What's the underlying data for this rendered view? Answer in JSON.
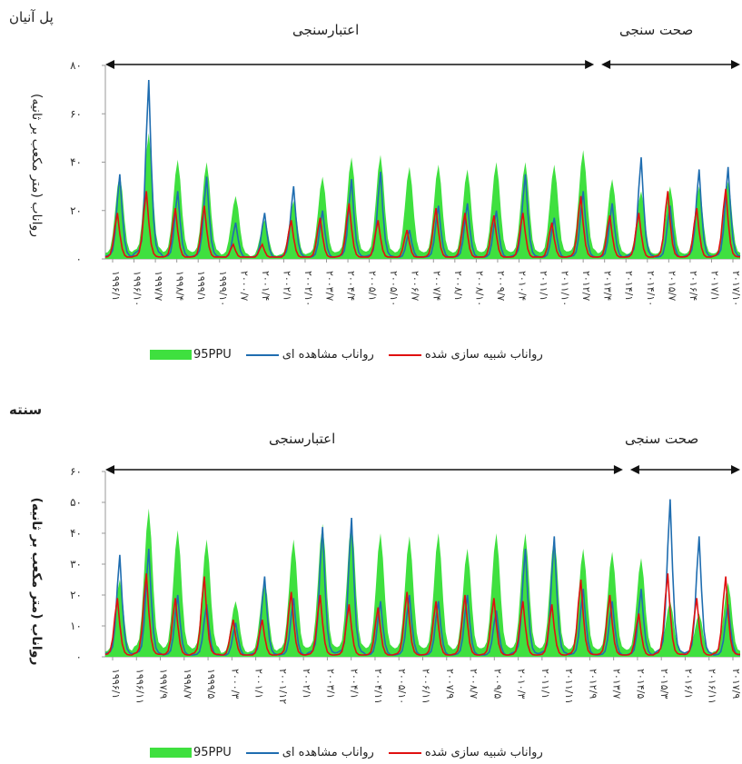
{
  "chart_data": [
    {
      "type": "area",
      "station": "پل آنیان",
      "ylabel": "رواناب (متر مکعب بر ثانیه)",
      "ylim": [
        0,
        80
      ],
      "yticks": [
        "۰",
        "۲۰",
        "۴۰",
        "۶۰",
        "۸۰"
      ],
      "periods": {
        "calibration": "اعتبارسنجی",
        "validation": "صحت سنجی"
      },
      "xticks": [
        "۱۹۹۶/۱",
        "۱۹۹۶/۱۰",
        "۱۹۹۷/۷",
        "۱۹۹۸/۴",
        "۱۹۹۹/۱",
        "۱۹۹۹/۱۰",
        "۲۰۰۰/۷",
        "۲۰۰۱/۴",
        "۲۰۰۲/۱",
        "۲۰۰۲/۱۰",
        "۲۰۰۳/۷",
        "۲۰۰۴/۴",
        "۲۰۰۵/۱",
        "۲۰۰۵/۱۰",
        "۲۰۰۶/۷",
        "۲۰۰۷/۴",
        "۲۰۰۸/۱",
        "۲۰۰۸/۱۰",
        "۲۰۰۹/۷",
        "۲۰۱۰/۴",
        "۲۰۱۱/۱",
        "۲۰۱۱/۱۰",
        "۲۰۱۲/۷",
        "۲۰۱۳/۴",
        "۲۰۱۴/۱",
        "۲۰۱۴/۱۰",
        "۲۰۱۵/۷",
        "۲۰۱۶/۴",
        "۲۰۱۷/۱",
        "۲۰۱۷/۱۰"
      ],
      "years": [
        "1996",
        "1997",
        "1998",
        "1999",
        "2000",
        "2001",
        "2002",
        "2003",
        "2004",
        "2005",
        "2006",
        "2007",
        "2008",
        "2009",
        "2010",
        "2011",
        "2012",
        "2013",
        "2014",
        "2015",
        "2016",
        "2017"
      ],
      "calibration_end_year": "2013",
      "series": [
        {
          "name": "95PPU",
          "kind": "band",
          "color": "#3fe03f",
          "values": [
            35,
            52,
            41,
            40,
            26,
            16,
            24,
            34,
            42,
            43,
            38,
            39,
            37,
            40,
            40,
            39,
            45,
            33,
            28,
            30,
            30,
            32
          ]
        },
        {
          "name": "رواناب مشاهده ای",
          "kind": "line",
          "color": "#1f6db0",
          "values": [
            35,
            74,
            28,
            34,
            15,
            19,
            30,
            20,
            33,
            36,
            12,
            22,
            23,
            20,
            35,
            17,
            28,
            23,
            42,
            22,
            37,
            38
          ]
        },
        {
          "name": "رواناب شبیه سازی شده",
          "kind": "line",
          "color": "#e01010",
          "values": [
            19,
            28,
            21,
            22,
            6,
            6,
            16,
            17,
            23,
            16,
            12,
            21,
            19,
            18,
            19,
            15,
            26,
            18,
            19,
            28,
            21,
            29
          ]
        }
      ],
      "legend": [
        "95PPU",
        "رواناب مشاهده ای",
        "رواناب شبیه سازی شده"
      ]
    },
    {
      "type": "area",
      "station": "سنته",
      "ylabel": "رواناب (متر مکعب بر ثانیه)",
      "ylim": [
        0,
        60
      ],
      "yticks": [
        "۰",
        "۱۰",
        "۲۰",
        "۳۰",
        "۴۰",
        "۵۰",
        "۶۰"
      ],
      "periods": {
        "calibration": "اعتبارسنجی",
        "validation": "صحت سنجی"
      },
      "xticks": [
        "۱۹۹۶/۱",
        "۱۹۹۶/۱۱",
        "۱۹۹۷/۹",
        "۱۹۹۸/۷",
        "۱۹۹۹/۵",
        "۲۰۰۰/۳",
        "۲۰۰۱/۱",
        "۲۰۰۱/۱۲",
        "۲۰۰۲/۱",
        "۲۰۰۳/۱",
        "۲۰۰۴/۱",
        "۲۰۰۴/۱۱",
        "۲۰۰۵/۱۰",
        "۲۰۰۶/۱۱",
        "۲۰۰۷/۹",
        "۲۰۰۸/۷",
        "۲۰۰۹/۵",
        "۲۰۱۰/۳",
        "۲۰۱۱/۱",
        "۲۰۱۱/۱۱",
        "۲۰۱۲/۹",
        "۲۰۱۳/۷",
        "۲۰۱۴/۵",
        "۲۰۱۵/۳",
        "۲۰۱۶/۱",
        "۲۰۱۶/۱۱",
        "۲۰۱۷/۹"
      ],
      "years": [
        "1996",
        "1997",
        "1998",
        "1999",
        "2000",
        "2001",
        "2002",
        "2003",
        "2004",
        "2005",
        "2006",
        "2007",
        "2008",
        "2009",
        "2010",
        "2011",
        "2012",
        "2013",
        "2014",
        "2015",
        "2016",
        "2017"
      ],
      "calibration_end_year": "2014",
      "series": [
        {
          "name": "95PPU",
          "kind": "band",
          "color": "#3fe03f",
          "values": [
            25,
            48,
            41,
            38,
            18,
            25,
            38,
            43,
            44,
            40,
            39,
            40,
            35,
            40,
            40,
            39,
            35,
            34,
            32,
            18,
            14,
            24
          ]
        },
        {
          "name": "رواناب مشاهده ای",
          "kind": "line",
          "color": "#1f6db0",
          "values": [
            33,
            35,
            20,
            17,
            11,
            26,
            19,
            42,
            45,
            18,
            20,
            18,
            20,
            15,
            35,
            39,
            22,
            18,
            22,
            51,
            39,
            17
          ]
        },
        {
          "name": "رواناب شبیه سازی شده",
          "kind": "line",
          "color": "#e01010",
          "values": [
            19,
            27,
            19,
            26,
            12,
            12,
            21,
            20,
            17,
            16,
            21,
            18,
            20,
            19,
            18,
            17,
            25,
            20,
            14,
            27,
            19,
            26
          ]
        }
      ],
      "legend": [
        "95PPU",
        "رواناب مشاهده ای",
        "رواناب شبیه سازی شده"
      ]
    }
  ]
}
